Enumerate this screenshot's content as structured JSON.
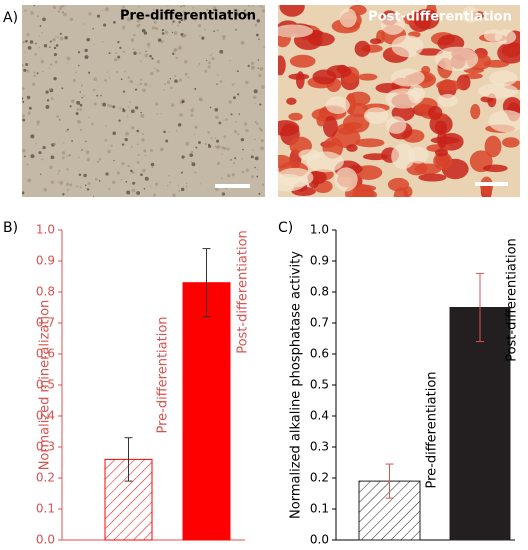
{
  "panel_labels": [
    "A)",
    "B)",
    "C)"
  ],
  "images": [
    {
      "label": "Pre-differentiation"
    },
    {
      "label": "Post-differentiation"
    }
  ],
  "chart_data": [
    {
      "type": "bar",
      "ylabel": "Normalized mineralization",
      "categories": [
        "Pre-differentiation",
        "Post-differentiation"
      ],
      "values": [
        0.26,
        0.83
      ],
      "errors": [
        0.07,
        0.11
      ],
      "color": "#ff0000",
      "bar_styles": [
        "hatched",
        "solid"
      ],
      "axis_color": "#d9534f",
      "error_color": "#333333",
      "ylim": [
        0,
        1
      ],
      "yticks": [
        {
          "value": 0,
          "label": "0.0"
        },
        0.1,
        0.2,
        0.3,
        0.4,
        0.5,
        0.6,
        0.7,
        0.8,
        0.9,
        {
          "value": 1,
          "label": "1.0"
        }
      ]
    },
    {
      "type": "bar",
      "ylabel": "Normalized alkaline phosphatase activity",
      "categories": [
        "Pre-differentiation",
        "Post-differentiation"
      ],
      "values": [
        0.19,
        0.75
      ],
      "errors": [
        0.055,
        0.11
      ],
      "color": "#231f20",
      "bar_styles": [
        "hatched",
        "solid"
      ],
      "axis_color": "#000000",
      "error_color": "#d9534f",
      "ylim": [
        0,
        1
      ],
      "yticks": [
        {
          "value": 0,
          "label": "0.0"
        },
        0.1,
        0.2,
        0.3,
        0.4,
        0.5,
        0.6,
        0.7,
        0.8,
        0.9,
        {
          "value": 1,
          "label": "1.0"
        }
      ]
    }
  ]
}
